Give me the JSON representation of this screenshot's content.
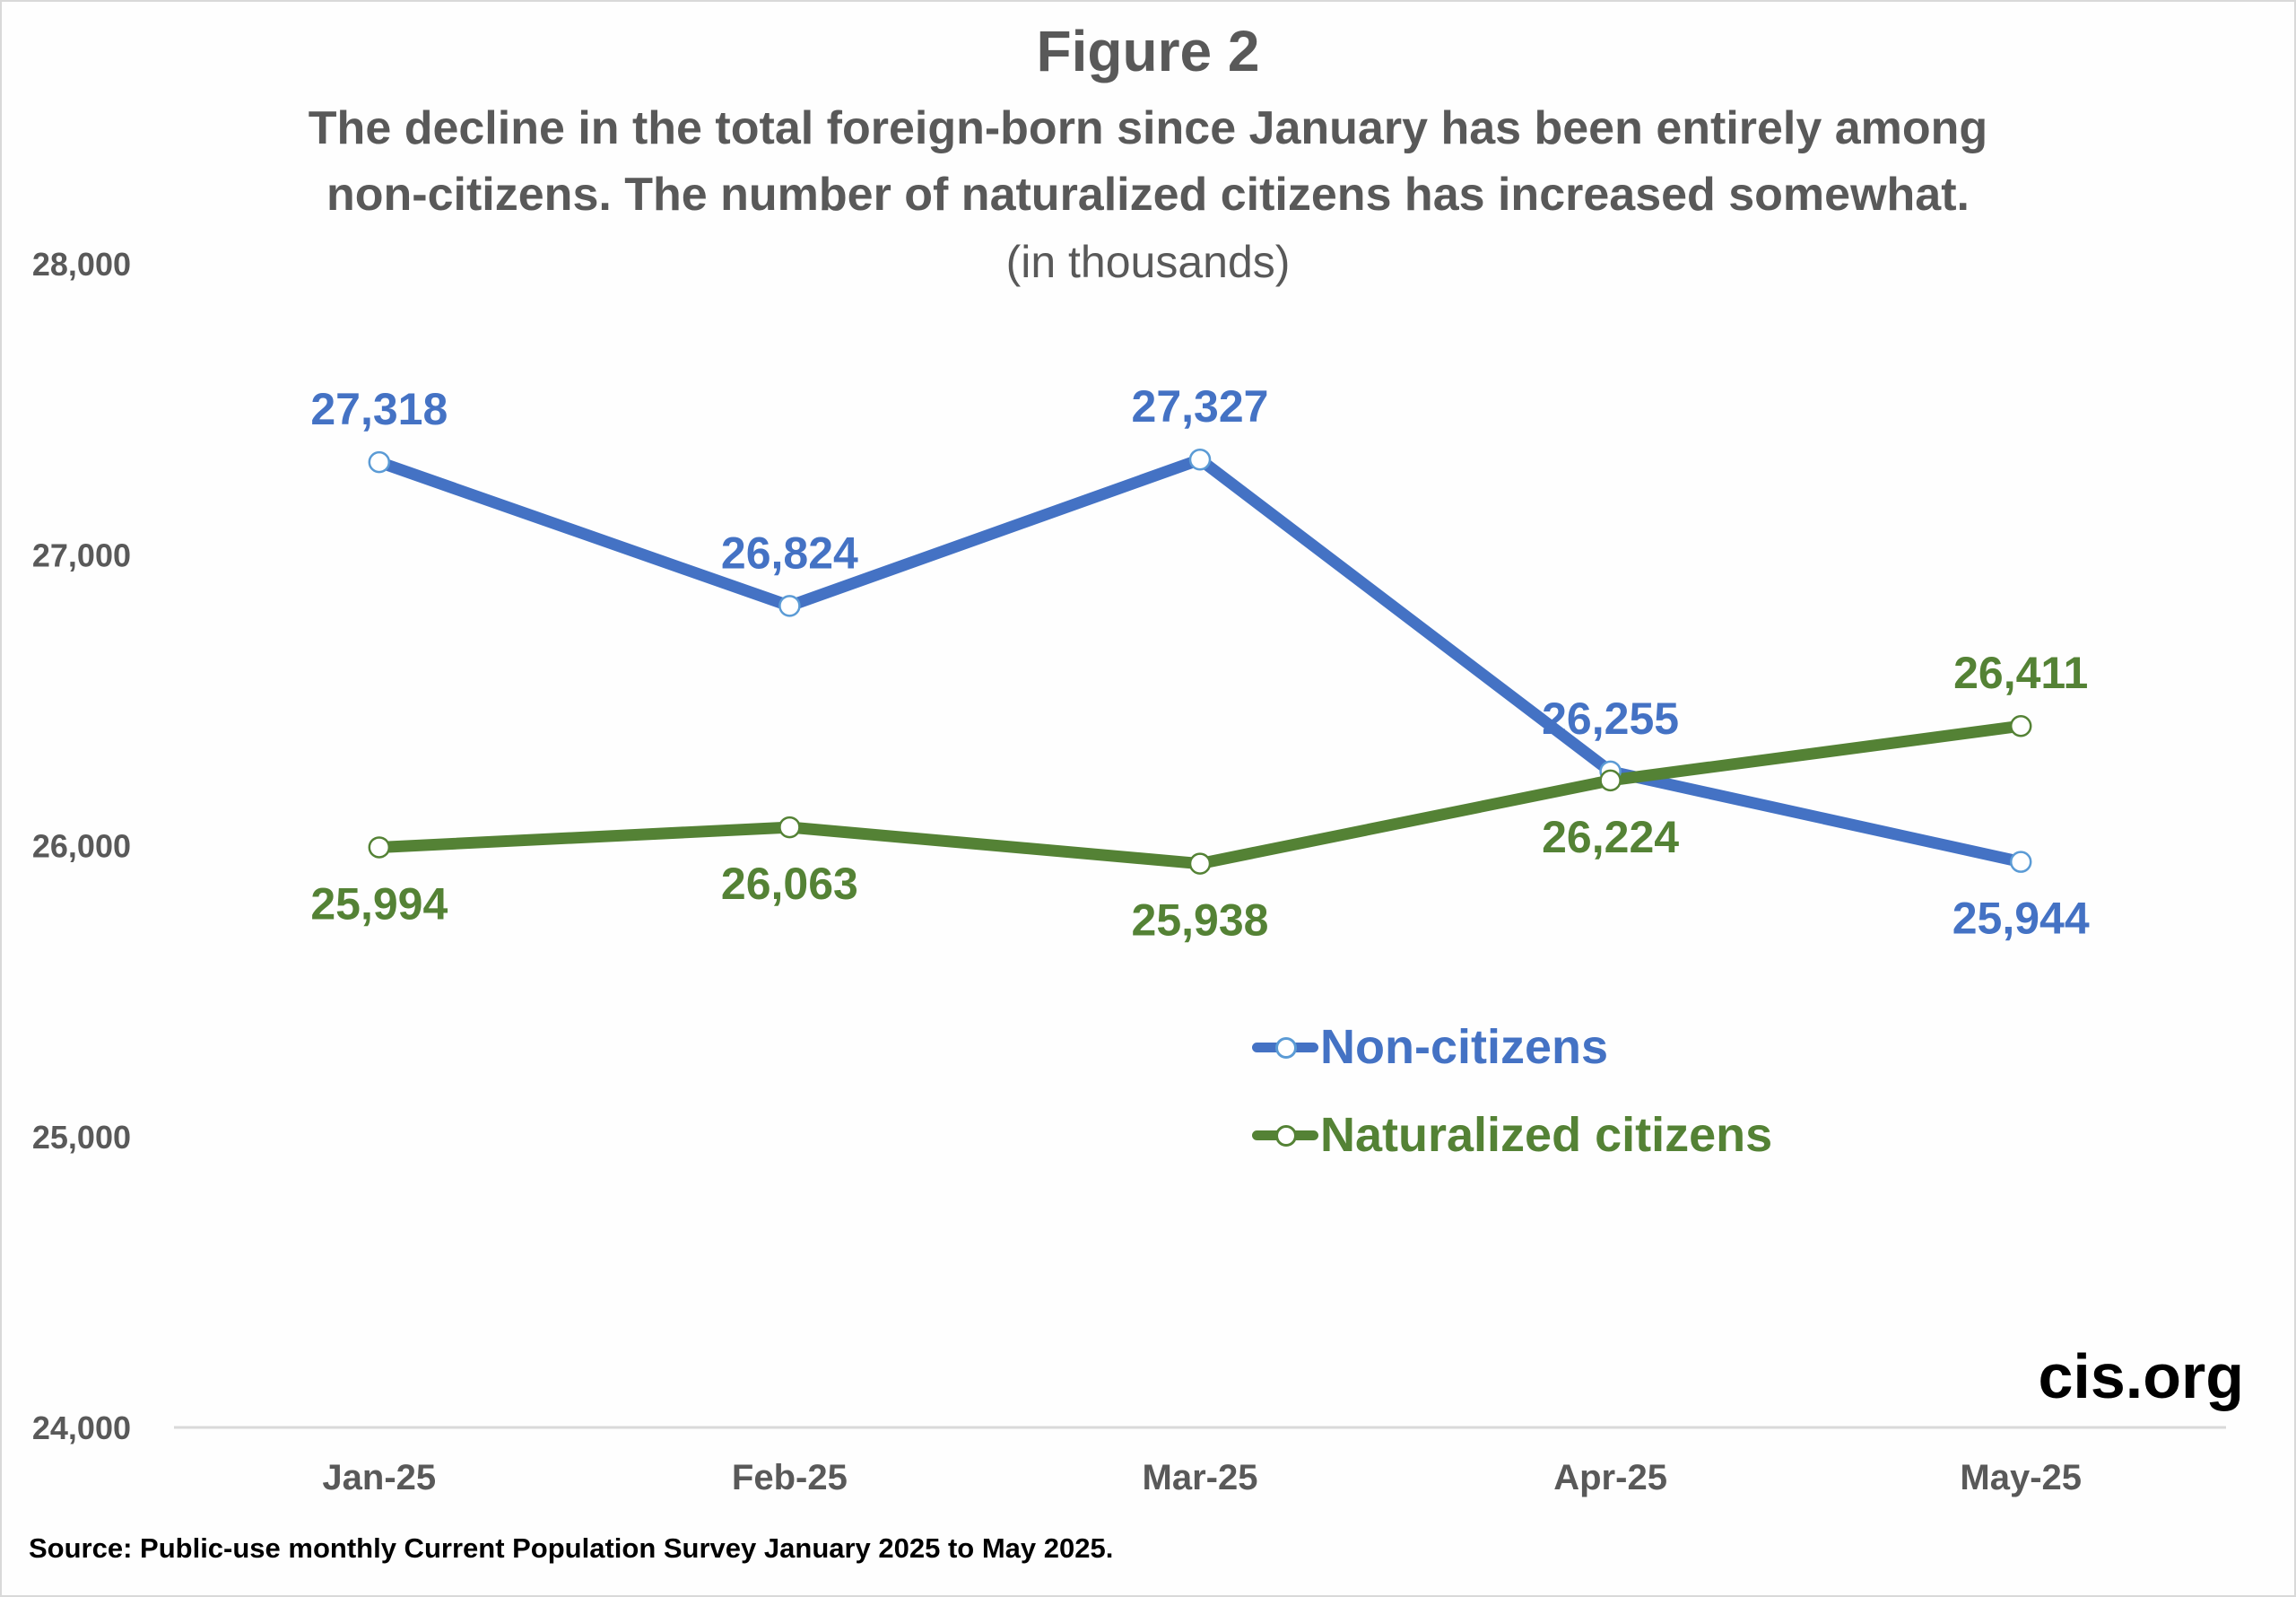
{
  "figure": {
    "title": "Figure 2",
    "subtitle_line1": "The decline in the total foreign-born since January has been entirely among",
    "subtitle_line2": "non-citizens. The number of naturalized citizens has increased somewhat.",
    "units": "(in thousands)",
    "source": "Source: Public-use monthly Current Population Survey January 2025 to May 2025.",
    "brand": "cis.org"
  },
  "colors": {
    "non_citizens": "#4472C4",
    "non_citizens_marker": "#5B9BD5",
    "naturalized": "#548235",
    "axis_text": "#595959",
    "axis_line": "#D9D9D9"
  },
  "chart_data": {
    "type": "line",
    "title": "Figure 2",
    "subtitle": "The decline in the total foreign-born since January has been entirely among non-citizens. The number of naturalized citizens has increased somewhat. (in thousands)",
    "xlabel": "",
    "ylabel": "",
    "categories": [
      "Jan-25",
      "Feb-25",
      "Mar-25",
      "Apr-25",
      "May-25"
    ],
    "ylim": [
      24000,
      28000
    ],
    "yticks": [
      24000,
      25000,
      26000,
      27000,
      28000
    ],
    "ytick_labels": [
      "24,000",
      "25,000",
      "26,000",
      "27,000",
      "28,000"
    ],
    "grid": false,
    "legend_position": "center-right",
    "series": [
      {
        "name": "Non-citizens",
        "values": [
          27318,
          26824,
          27327,
          26255,
          25944
        ],
        "labels": [
          "27,318",
          "26,824",
          "27,327",
          "26,255",
          "25,944"
        ],
        "label_positions": [
          "above",
          "above",
          "above",
          "above",
          "below"
        ]
      },
      {
        "name": "Naturalized citizens",
        "values": [
          25994,
          26063,
          25938,
          26224,
          26411
        ],
        "labels": [
          "25,994",
          "26,063",
          "25,938",
          "26,224",
          "26,411"
        ],
        "label_positions": [
          "below",
          "below",
          "below",
          "below",
          "above"
        ]
      }
    ]
  }
}
